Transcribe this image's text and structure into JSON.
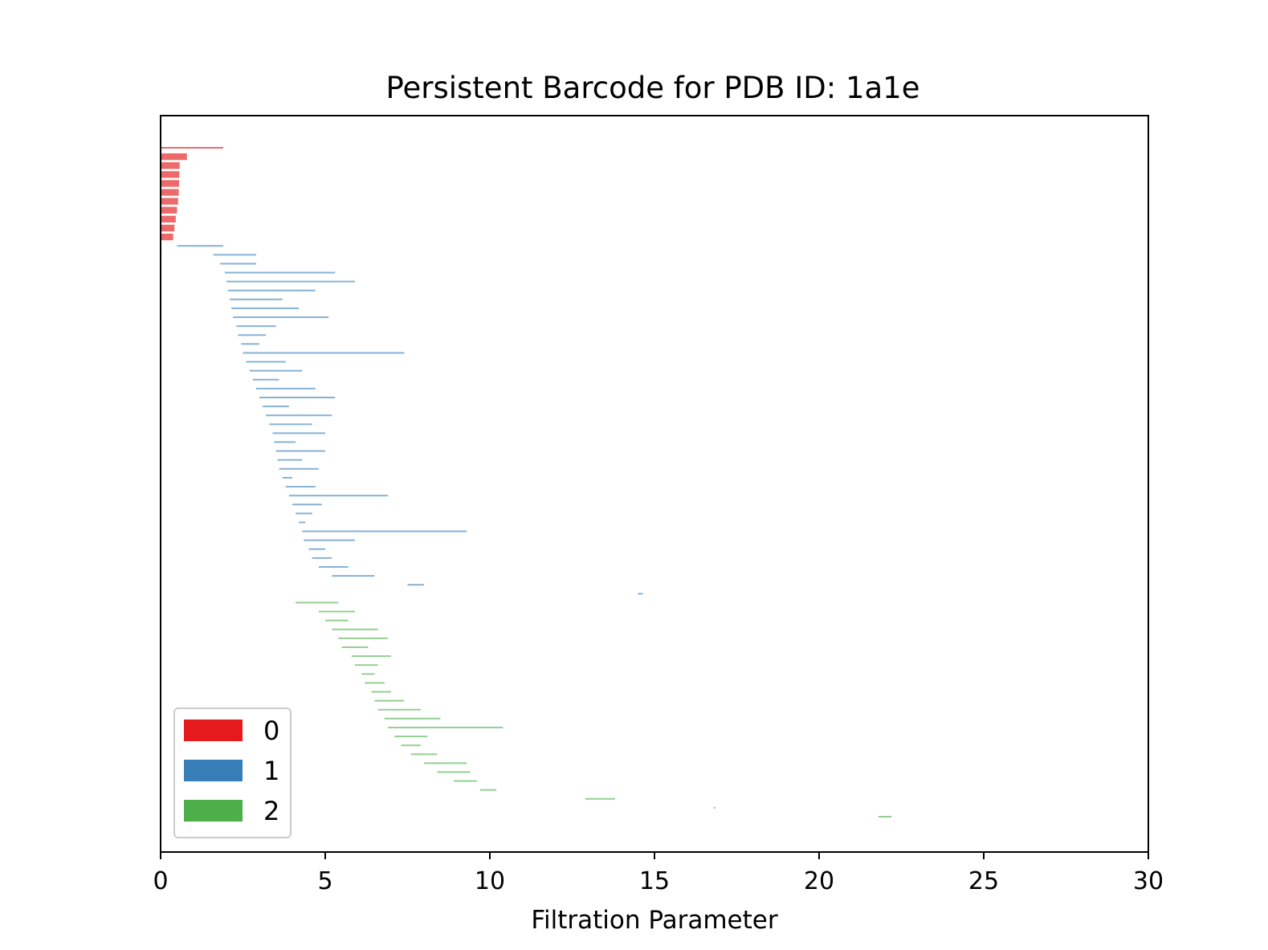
{
  "chart_data": {
    "type": "barcode",
    "title": "Persistent Barcode for PDB ID: 1a1e",
    "xlabel": "Filtration Parameter",
    "ylabel": "",
    "xlim": [
      0,
      30
    ],
    "x_ticks": [
      0,
      5,
      10,
      15,
      20,
      25,
      30
    ],
    "y_ticks_visible": false,
    "legend_position": "lower-left",
    "series": [
      {
        "name": "0",
        "color": "#e41a1c",
        "bars": [
          {
            "birth": 0,
            "death": 1.9
          },
          {
            "birth": 0,
            "death": 0.8
          },
          {
            "birth": 0,
            "death": 0.58
          },
          {
            "birth": 0,
            "death": 0.57
          },
          {
            "birth": 0,
            "death": 0.56
          },
          {
            "birth": 0,
            "death": 0.55
          },
          {
            "birth": 0,
            "death": 0.53
          },
          {
            "birth": 0,
            "death": 0.5
          },
          {
            "birth": 0,
            "death": 0.46
          },
          {
            "birth": 0,
            "death": 0.42
          },
          {
            "birth": 0,
            "death": 0.38
          }
        ]
      },
      {
        "name": "1",
        "color": "#377eb8",
        "bars": [
          {
            "birth": 0.5,
            "death": 1.9
          },
          {
            "birth": 1.6,
            "death": 2.9
          },
          {
            "birth": 1.8,
            "death": 2.9
          },
          {
            "birth": 1.95,
            "death": 5.3
          },
          {
            "birth": 2.0,
            "death": 5.9
          },
          {
            "birth": 2.05,
            "death": 4.7
          },
          {
            "birth": 2.1,
            "death": 3.7
          },
          {
            "birth": 2.15,
            "death": 4.2
          },
          {
            "birth": 2.2,
            "death": 5.1
          },
          {
            "birth": 2.3,
            "death": 3.5
          },
          {
            "birth": 2.35,
            "death": 3.2
          },
          {
            "birth": 2.45,
            "death": 3.0
          },
          {
            "birth": 2.5,
            "death": 7.4
          },
          {
            "birth": 2.6,
            "death": 3.8
          },
          {
            "birth": 2.7,
            "death": 4.3
          },
          {
            "birth": 2.8,
            "death": 3.6
          },
          {
            "birth": 2.9,
            "death": 4.7
          },
          {
            "birth": 3.0,
            "death": 5.3
          },
          {
            "birth": 3.1,
            "death": 3.9
          },
          {
            "birth": 3.2,
            "death": 5.2
          },
          {
            "birth": 3.3,
            "death": 4.6
          },
          {
            "birth": 3.4,
            "death": 5.0
          },
          {
            "birth": 3.45,
            "death": 4.1
          },
          {
            "birth": 3.5,
            "death": 5.0
          },
          {
            "birth": 3.55,
            "death": 4.3
          },
          {
            "birth": 3.6,
            "death": 4.8
          },
          {
            "birth": 3.7,
            "death": 4.0
          },
          {
            "birth": 3.8,
            "death": 4.7
          },
          {
            "birth": 3.9,
            "death": 6.9
          },
          {
            "birth": 4.0,
            "death": 4.9
          },
          {
            "birth": 4.1,
            "death": 4.6
          },
          {
            "birth": 4.2,
            "death": 4.4
          },
          {
            "birth": 4.3,
            "death": 9.3
          },
          {
            "birth": 4.35,
            "death": 5.9
          },
          {
            "birth": 4.5,
            "death": 5.0
          },
          {
            "birth": 4.6,
            "death": 5.2
          },
          {
            "birth": 4.8,
            "death": 5.7
          },
          {
            "birth": 5.2,
            "death": 6.5
          },
          {
            "birth": 7.5,
            "death": 8.0
          },
          {
            "birth": 14.5,
            "death": 14.65
          }
        ]
      },
      {
        "name": "2",
        "color": "#4daf4a",
        "bars": [
          {
            "birth": 4.1,
            "death": 5.4
          },
          {
            "birth": 4.8,
            "death": 5.9
          },
          {
            "birth": 5.0,
            "death": 5.7
          },
          {
            "birth": 5.2,
            "death": 6.6
          },
          {
            "birth": 5.4,
            "death": 6.9
          },
          {
            "birth": 5.5,
            "death": 6.3
          },
          {
            "birth": 5.8,
            "death": 7.0
          },
          {
            "birth": 5.9,
            "death": 6.6
          },
          {
            "birth": 6.1,
            "death": 6.5
          },
          {
            "birth": 6.2,
            "death": 6.8
          },
          {
            "birth": 6.4,
            "death": 7.0
          },
          {
            "birth": 6.5,
            "death": 7.4
          },
          {
            "birth": 6.6,
            "death": 7.9
          },
          {
            "birth": 6.8,
            "death": 8.5
          },
          {
            "birth": 6.9,
            "death": 10.4
          },
          {
            "birth": 7.1,
            "death": 8.1
          },
          {
            "birth": 7.3,
            "death": 7.9
          },
          {
            "birth": 7.6,
            "death": 8.4
          },
          {
            "birth": 8.0,
            "death": 9.3
          },
          {
            "birth": 8.4,
            "death": 9.4
          },
          {
            "birth": 8.9,
            "death": 9.6
          },
          {
            "birth": 9.7,
            "death": 10.2
          },
          {
            "birth": 12.9,
            "death": 13.8
          },
          {
            "birth": 16.8,
            "death": 16.85
          },
          {
            "birth": 21.8,
            "death": 22.2
          }
        ]
      }
    ]
  }
}
